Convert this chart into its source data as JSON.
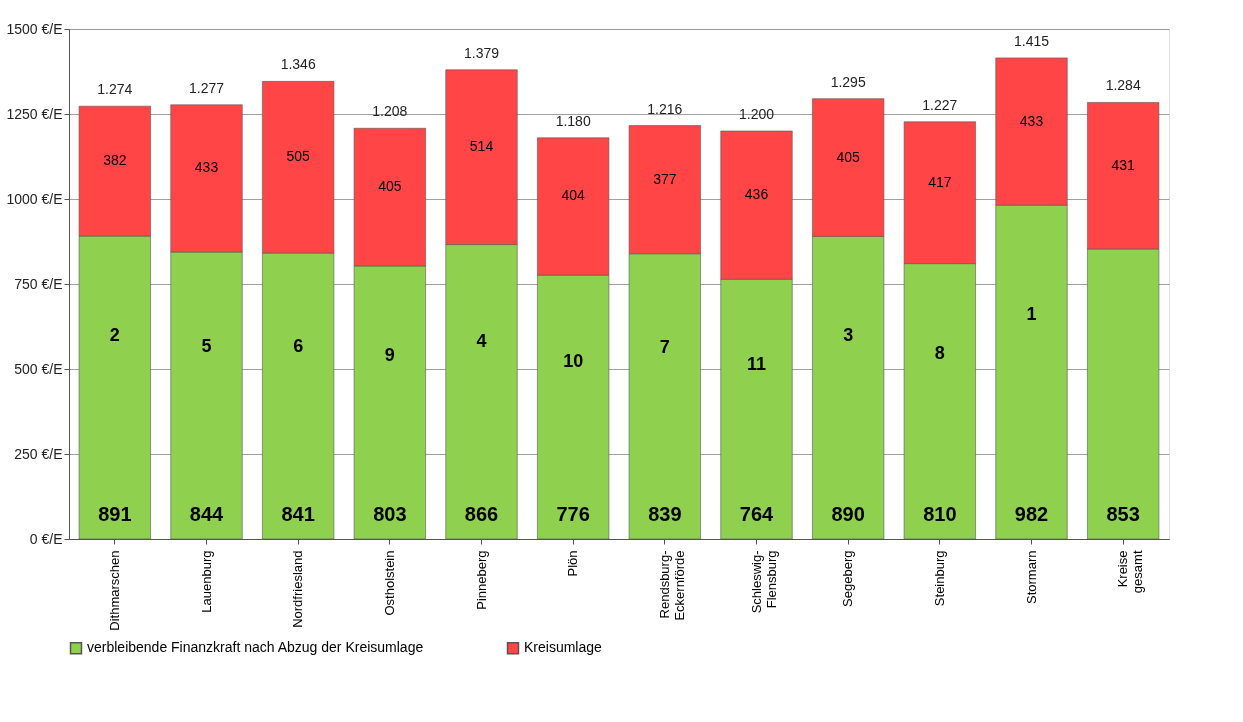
{
  "chart_data": {
    "type": "bar",
    "stacked": true,
    "categories": [
      "Dithmarschen",
      "Lauenburg",
      "Nordfriesland",
      "Ostholstein",
      "Pinneberg",
      "Plön",
      "Rendsburg-Eckernförde",
      "Schleswig-Flensburg",
      "Segeberg",
      "Steinburg",
      "Stormarn",
      "Kreise gesamt"
    ],
    "series": [
      {
        "name": "verbleibende Finanzkraft nach Abzug der Kreisumlage",
        "color": "#8fd14f",
        "values": [
          891,
          844,
          841,
          803,
          866,
          776,
          839,
          764,
          890,
          810,
          982,
          853
        ]
      },
      {
        "name": "Kreisumlage",
        "color": "#ff4545",
        "values": [
          382,
          433,
          505,
          405,
          514,
          404,
          377,
          436,
          405,
          417,
          433,
          431
        ]
      }
    ],
    "data_labels": true,
    "totals": [
      "1.274",
      "1.277",
      "1.346",
      "1.208",
      "1.379",
      "1.180",
      "1.216",
      "1.200",
      "1.295",
      "1.227",
      "1.415",
      "1.284"
    ],
    "annotations": [
      "2",
      "5",
      "6",
      "9",
      "4",
      "10",
      "7",
      "11",
      "3",
      "8",
      "1"
    ],
    "ylim": [
      0,
      1500
    ],
    "yticks": [
      {
        "value": 0,
        "label": "0 €/E"
      },
      {
        "value": 250,
        "label": "250 €/E"
      },
      {
        "value": 500,
        "label": "500 €/E"
      },
      {
        "value": 750,
        "label": "750 €/E"
      },
      {
        "value": 1000,
        "label": "1000 €/E"
      },
      {
        "value": 1250,
        "label": "1250 €/E"
      },
      {
        "value": 1500,
        "label": "1500 €/E"
      }
    ],
    "grid": "y",
    "legend": "bottom"
  }
}
